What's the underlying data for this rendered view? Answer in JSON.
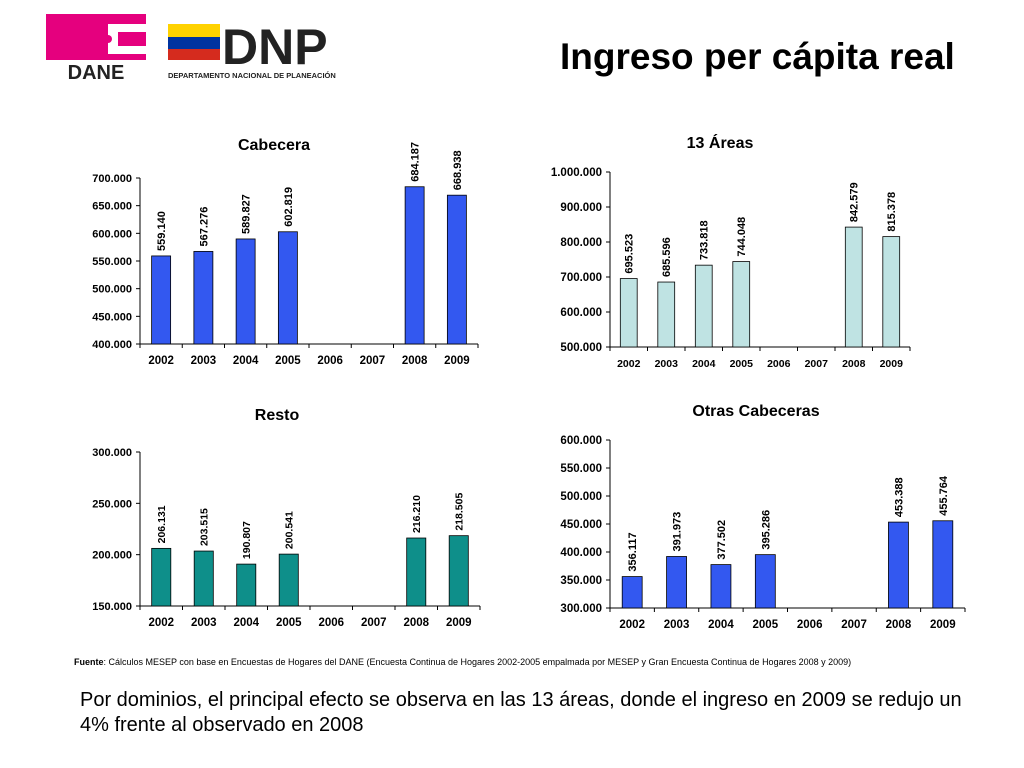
{
  "header": {
    "title": "Ingreso per cápita real",
    "logos": [
      {
        "name": "DANE",
        "text": "DANE",
        "color": "#E5007E"
      },
      {
        "name": "DNP",
        "text": "DNP",
        "subtitle": "DEPARTAMENTO NACIONAL DE PLANEACIÓN"
      }
    ]
  },
  "chart_data": [
    {
      "type": "bar",
      "title": "Cabecera",
      "categories": [
        "2002",
        "2003",
        "2004",
        "2005",
        "2006",
        "2007",
        "2008",
        "2009"
      ],
      "values": [
        559140,
        567276,
        589827,
        602819,
        null,
        null,
        684187,
        668938
      ],
      "data_labels": [
        "559.140",
        "567.276",
        "589.827",
        "602.819",
        "",
        "",
        "684.187",
        "668.938"
      ],
      "ylim": [
        400000,
        700000
      ],
      "yticks": [
        400000,
        450000,
        500000,
        550000,
        600000,
        650000,
        700000
      ],
      "ytick_labels": [
        "400.000",
        "450.000",
        "500.000",
        "550.000",
        "600.000",
        "650.000",
        "700.000"
      ],
      "bar_color": "#3358F0",
      "grid": false
    },
    {
      "type": "bar",
      "title": "13 Áreas",
      "categories": [
        "2002",
        "2003",
        "2004",
        "2005",
        "2006",
        "2007",
        "2008",
        "2009"
      ],
      "values": [
        695523,
        685596,
        733818,
        744048,
        null,
        null,
        842579,
        815378
      ],
      "data_labels": [
        "695.523",
        "685.596",
        "733.818",
        "744.048",
        "",
        "",
        "842.579",
        "815.378"
      ],
      "ylim": [
        500000,
        1000000
      ],
      "yticks": [
        500000,
        600000,
        700000,
        800000,
        900000,
        1000000
      ],
      "ytick_labels": [
        "500.000",
        "600.000",
        "700.000",
        "800.000",
        "900.000",
        "1.000.000"
      ],
      "bar_color": "#BFE3E3",
      "grid": false
    },
    {
      "type": "bar",
      "title": "Resto",
      "categories": [
        "2002",
        "2003",
        "2004",
        "2005",
        "2006",
        "2007",
        "2008",
        "2009"
      ],
      "values": [
        206131,
        203515,
        190807,
        200541,
        null,
        null,
        216210,
        218505
      ],
      "data_labels": [
        "206.131",
        "203.515",
        "190.807",
        "200.541",
        "",
        "",
        "216.210",
        "218.505"
      ],
      "ylim": [
        150000,
        300000
      ],
      "yticks": [
        150000,
        200000,
        250000,
        300000
      ],
      "ytick_labels": [
        "150.000",
        "200.000",
        "250.000",
        "300.000"
      ],
      "bar_color": "#0E8F8A",
      "grid": false
    },
    {
      "type": "bar",
      "title": "Otras Cabeceras",
      "categories": [
        "2002",
        "2003",
        "2004",
        "2005",
        "2006",
        "2007",
        "2008",
        "2009"
      ],
      "values": [
        356117,
        391973,
        377502,
        395286,
        null,
        null,
        453388,
        455764
      ],
      "data_labels": [
        "356.117",
        "391.973",
        "377.502",
        "395.286",
        "",
        "",
        "453.388",
        "455.764"
      ],
      "ylim": [
        300000,
        600000
      ],
      "yticks": [
        300000,
        350000,
        400000,
        450000,
        500000,
        550000,
        600000
      ],
      "ytick_labels": [
        "300.000",
        "350.000",
        "400.000",
        "450.000",
        "500.000",
        "550.000",
        "600.000"
      ],
      "bar_color": "#3358F0",
      "grid": false
    }
  ],
  "source": {
    "label": "Fuente",
    "text": ": Cálculos MESEP con base en Encuestas de Hogares del DANE (Encuesta Continua de Hogares 2002-2005 empalmada por MESEP y Gran Encuesta Continua de Hogares 2008 y 2009)"
  },
  "conclusion": "Por dominios, el principal efecto se observa en las 13 áreas, donde el ingreso en 2009 se redujo un 4% frente al observado en 2008"
}
